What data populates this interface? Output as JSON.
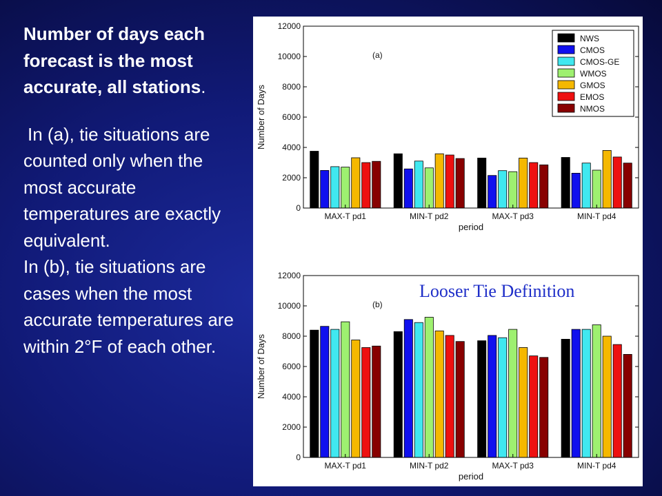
{
  "slide": {
    "title": "Number of days each forecast is the most accurate, all stations",
    "title_period": ".",
    "para_a": "In (a), tie situations are counted only when the most accurate temperatures are exactly equivalent.",
    "para_b": "In (b), tie situations are cases when the most accurate temperatures are within 2°F of each other.",
    "annotation": "Looser Tie Definition"
  },
  "colors": {
    "NWS": "#000000",
    "CMOS": "#1010ee",
    "CMOS-GE": "#40e8f0",
    "WMOS": "#9ef070",
    "GMOS": "#f5b800",
    "EMOS": "#ee1010",
    "NMOS": "#880000"
  },
  "chart_data": [
    {
      "type": "bar",
      "panel_label": "(a)",
      "categories": [
        "MAX-T pd1",
        "MIN-T pd2",
        "MAX-T pd3",
        "MIN-T pd4"
      ],
      "series": [
        {
          "name": "NWS",
          "values": [
            3750,
            3580,
            3300,
            3340
          ]
        },
        {
          "name": "CMOS",
          "values": [
            2480,
            2580,
            2150,
            2300
          ]
        },
        {
          "name": "CMOS-GE",
          "values": [
            2730,
            3100,
            2470,
            2970
          ]
        },
        {
          "name": "WMOS",
          "values": [
            2700,
            2650,
            2400,
            2500
          ]
        },
        {
          "name": "GMOS",
          "values": [
            3320,
            3580,
            3300,
            3800
          ]
        },
        {
          "name": "EMOS",
          "values": [
            3000,
            3500,
            3000,
            3370
          ]
        },
        {
          "name": "NMOS",
          "values": [
            3080,
            3270,
            2850,
            2970
          ]
        }
      ],
      "xlabel": "period",
      "ylabel": "Number of Days",
      "ylim": [
        0,
        12000
      ],
      "yticks": [
        0,
        2000,
        4000,
        6000,
        8000,
        10000,
        12000
      ],
      "legend": "top-right",
      "grid": false
    },
    {
      "type": "bar",
      "panel_label": "(b)",
      "categories": [
        "MAX-T pd1",
        "MIN-T pd2",
        "MAX-T pd3",
        "MIN-T pd4"
      ],
      "series": [
        {
          "name": "NWS",
          "values": [
            8400,
            8300,
            7700,
            7800
          ]
        },
        {
          "name": "CMOS",
          "values": [
            8650,
            9100,
            8050,
            8450
          ]
        },
        {
          "name": "CMOS-GE",
          "values": [
            8450,
            8900,
            7900,
            8450
          ]
        },
        {
          "name": "WMOS",
          "values": [
            8950,
            9250,
            8450,
            8750
          ]
        },
        {
          "name": "GMOS",
          "values": [
            7750,
            8350,
            7250,
            8000
          ]
        },
        {
          "name": "EMOS",
          "values": [
            7250,
            8050,
            6700,
            7450
          ]
        },
        {
          "name": "NMOS",
          "values": [
            7350,
            7650,
            6600,
            6800
          ]
        }
      ],
      "xlabel": "period",
      "ylabel": "Number of Days",
      "ylim": [
        0,
        12000
      ],
      "yticks": [
        0,
        2000,
        4000,
        6000,
        8000,
        10000,
        12000
      ],
      "legend": "none",
      "grid": false
    }
  ]
}
